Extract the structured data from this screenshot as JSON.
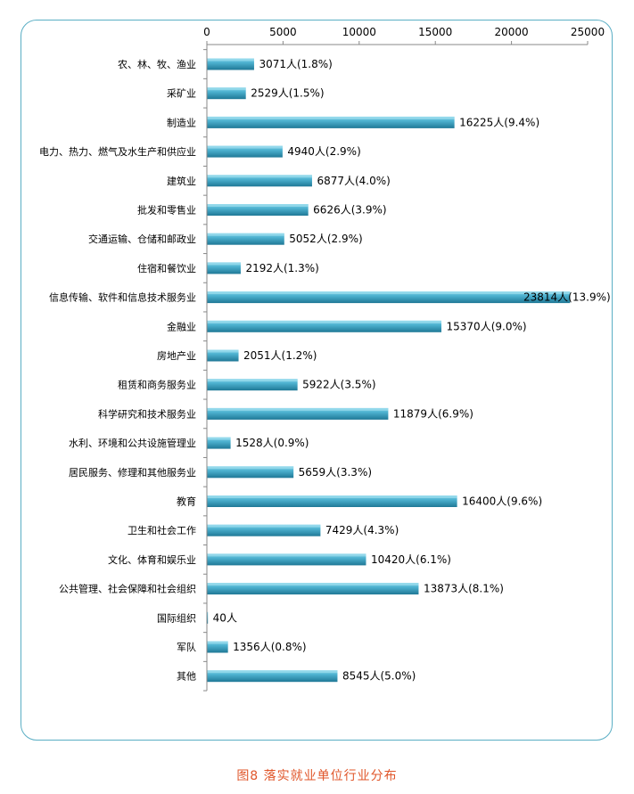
{
  "chart_data": {
    "type": "bar",
    "orientation": "horizontal",
    "xlim": [
      0,
      25000
    ],
    "x_ticks": [
      "0",
      "5000",
      "10000",
      "15000",
      "20000",
      "25000"
    ],
    "x_tick_values": [
      0,
      5000,
      10000,
      15000,
      20000,
      25000
    ],
    "axis_position": "top",
    "grid": false,
    "bar_color": "#3b9cbc",
    "categories": [
      "农、林、牧、渔业",
      "采矿业",
      "制造业",
      "电力、热力、燃气及水生产和供应业",
      "建筑业",
      "批发和零售业",
      "交通运输、仓储和邮政业",
      "住宿和餐饮业",
      "信息传输、软件和信息技术服务业",
      "金融业",
      "房地产业",
      "租赁和商务服务业",
      "科学研究和技术服务业",
      "水利、环境和公共设施管理业",
      "居民服务、修理和其他服务业",
      "教育",
      "卫生和社会工作",
      "文化、体育和娱乐业",
      "公共管理、社会保障和社会组织",
      "国际组织",
      "军队",
      "其他"
    ],
    "values": [
      3071,
      2529,
      16225,
      4940,
      6877,
      6626,
      5052,
      2192,
      23814,
      15370,
      2051,
      5922,
      11879,
      1528,
      5659,
      16400,
      7429,
      10420,
      13873,
      40,
      1356,
      8545
    ],
    "data_labels": [
      "3071人(1.8%)",
      "2529人(1.5%)",
      "16225人(9.4%)",
      "4940人(2.9%)",
      "6877人(4.0%)",
      "6626人(3.9%)",
      "5052人(2.9%)",
      "2192人(1.3%)",
      "23814人(13.9%)",
      "15370人(9.0%)",
      "2051人(1.2%)",
      "5922人(3.5%)",
      "11879人(6.9%)",
      "1528人(0.9%)",
      "5659人(3.3%)",
      "16400人(9.6%)",
      "7429人(4.3%)",
      "10420人(6.1%)",
      "13873人(8.1%)",
      "40人",
      "1356人(0.8%)",
      "8545人(5.0%)"
    ]
  },
  "caption": "图8  落实就业单位行业分布"
}
